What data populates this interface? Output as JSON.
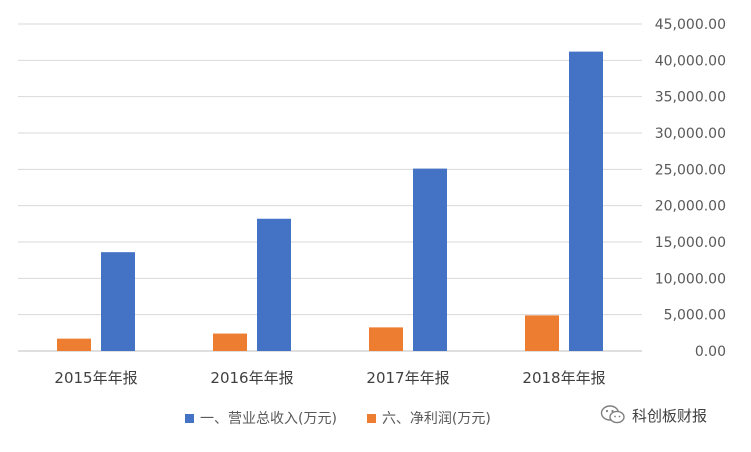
{
  "chart_data": {
    "type": "bar",
    "categories": [
      "2015年年报",
      "2016年年报",
      "2017年年报",
      "2018年年报"
    ],
    "series": [
      {
        "name": "六、净利润(万元)",
        "color": "#ED7D31",
        "values": [
          1700,
          2400,
          3250,
          4900
        ]
      },
      {
        "name": "一、营业总收入(万元)",
        "color": "#4472C4",
        "values": [
          13600,
          18200,
          25100,
          41200
        ]
      }
    ],
    "legend_order": [
      1,
      0
    ],
    "y_ticks": [
      "0.00",
      "5,000.00",
      "10,000.00",
      "15,000.00",
      "20,000.00",
      "25,000.00",
      "30,000.00",
      "35,000.00",
      "40,000.00",
      "45,000.00"
    ],
    "ylim": [
      0,
      45000
    ],
    "y_axis_position": "right",
    "grid": true,
    "legend_position": "bottom"
  },
  "watermark": {
    "text": "科创板财报",
    "icon": "wechat-icon"
  }
}
